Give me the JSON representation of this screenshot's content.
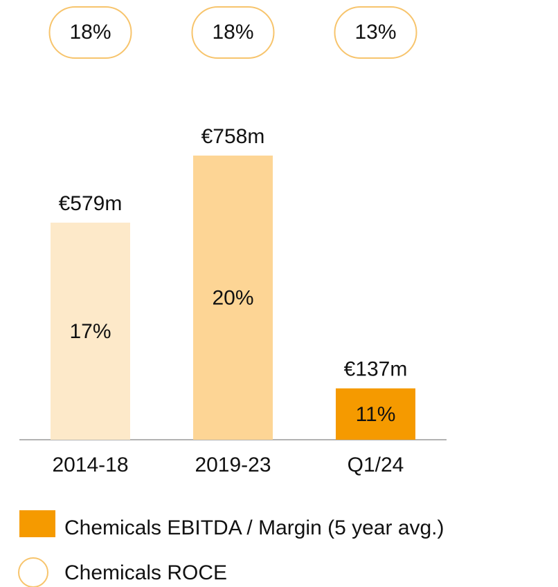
{
  "chart_data": {
    "type": "bar",
    "categories": [
      "2014-18",
      "2019-23",
      "Q1/24"
    ],
    "series": [
      {
        "name": "Chemicals EBITDA / Margin (5 year avg.)",
        "color": "#f59a00",
        "colors": [
          "#fde9c9",
          "#fdd595",
          "#f59a00"
        ],
        "values": [
          579,
          758,
          137
        ],
        "value_labels": [
          "€579m",
          "€758m",
          "€137m"
        ],
        "margins": {
          "values": [
            17,
            20,
            11
          ],
          "value_labels": [
            "17%",
            "20%",
            "11%"
          ]
        }
      },
      {
        "name": "Chemicals ROCE",
        "color": "#f7c46c",
        "values": [
          18,
          18,
          13
        ],
        "value_labels": [
          "18%",
          "18%",
          "13%"
        ]
      }
    ]
  }
}
